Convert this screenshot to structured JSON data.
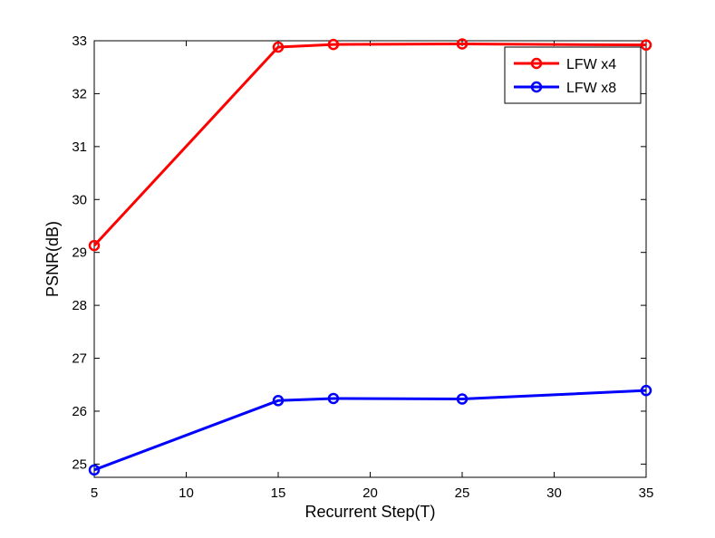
{
  "chart_data": {
    "type": "line",
    "title": "",
    "xlabel": "Recurrent Step(T)",
    "ylabel": "PSNR(dB)",
    "xlim": [
      5,
      35
    ],
    "ylim": [
      24.75,
      33
    ],
    "xticks": [
      "5",
      "10",
      "15",
      "20",
      "25",
      "30",
      "35"
    ],
    "yticks": [
      "25",
      "26",
      "27",
      "28",
      "29",
      "30",
      "31",
      "32",
      "33"
    ],
    "grid": false,
    "legend_position": "top-right",
    "x": [
      5,
      15,
      18,
      25,
      35
    ],
    "series": [
      {
        "name": "LFW x4",
        "color": "#ff0000",
        "values": [
          29.13,
          32.88,
          32.93,
          32.94,
          32.92
        ]
      },
      {
        "name": "LFW x8",
        "color": "#0000ff",
        "values": [
          24.89,
          26.2,
          26.24,
          26.23,
          26.39
        ]
      }
    ]
  }
}
